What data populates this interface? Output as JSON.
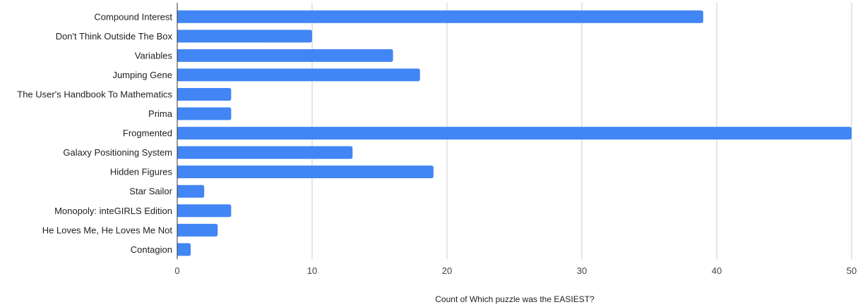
{
  "chart_data": {
    "type": "bar",
    "orientation": "horizontal",
    "title": "",
    "xlabel": "Count of Which puzzle was the EASIEST?",
    "ylabel": "",
    "xlim": [
      0,
      50
    ],
    "x_ticks": [
      0,
      10,
      20,
      30,
      40,
      50
    ],
    "grid": true,
    "legend": "none",
    "bar_color": "#4285f4",
    "categories": [
      "Compound Interest",
      "Don't Think Outside The Box",
      "Variables",
      "Jumping Gene",
      "The User's Handbook To Mathematics",
      "Prima",
      "Frogmented",
      "Galaxy Positioning System",
      "Hidden Figures",
      "Star Sailor",
      "Monopoly: inteGIRLS Edition",
      "He Loves Me, He Loves Me Not",
      "Contagion"
    ],
    "values": [
      39,
      10,
      16,
      18,
      4,
      4,
      50,
      13,
      19,
      2,
      4,
      3,
      1
    ]
  }
}
